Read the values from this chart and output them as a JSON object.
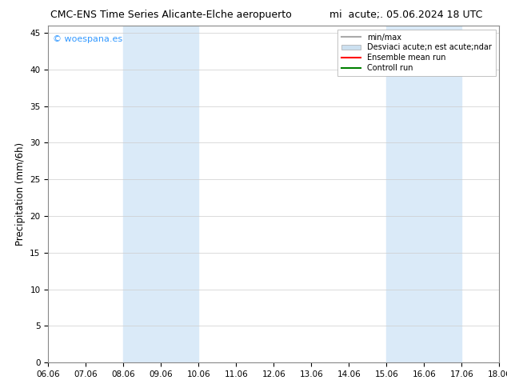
{
  "title_left": "CMC-ENS Time Series Alicante-Elche aeropuerto",
  "title_right": "mi  acute;. 05.06.2024 18 UTC",
  "ylabel": "Precipitation (mm/6h)",
  "xlabel_ticks": [
    "06.06",
    "07.06",
    "08.06",
    "09.06",
    "10.06",
    "11.06",
    "12.06",
    "13.06",
    "14.06",
    "15.06",
    "16.06",
    "17.06",
    "18.06"
  ],
  "xlim": [
    0,
    12
  ],
  "ylim": [
    0,
    46
  ],
  "yticks": [
    0,
    5,
    10,
    15,
    20,
    25,
    30,
    35,
    40,
    45
  ],
  "shaded_regions": [
    {
      "xmin": 2.0,
      "xmax": 4.0
    },
    {
      "xmin": 9.0,
      "xmax": 11.0
    }
  ],
  "shaded_color": "#daeaf8",
  "bg_color": "#ffffff",
  "watermark_text": "© woespana.es",
  "watermark_color": "#3399ff",
  "legend_entries": [
    {
      "label": "min/max",
      "color": "#aaaaaa",
      "lw": 1.5,
      "ls": "-",
      "type": "line"
    },
    {
      "label": "Desviaci acute;n est acute;ndar",
      "color": "#cce0f0",
      "lw": 6,
      "ls": "-",
      "type": "patch"
    },
    {
      "label": "Ensemble mean run",
      "color": "red",
      "lw": 1.5,
      "ls": "-",
      "type": "line"
    },
    {
      "label": "Controll run",
      "color": "green",
      "lw": 1.5,
      "ls": "-",
      "type": "line"
    }
  ],
  "title_fontsize": 9,
  "tick_fontsize": 7.5,
  "ylabel_fontsize": 8.5,
  "legend_fontsize": 7
}
